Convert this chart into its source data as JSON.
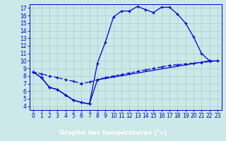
{
  "title": "Graphe des températures (°c)",
  "bg_color": "#cce8e8",
  "line_color": "#0000cc",
  "grid_color": "#aacccc",
  "xlabel_bg": "#0000aa",
  "xlabel_fg": "#ffffff",
  "xlim": [
    -0.5,
    23.5
  ],
  "ylim": [
    3.5,
    17.5
  ],
  "xticks": [
    0,
    1,
    2,
    3,
    4,
    5,
    6,
    7,
    8,
    9,
    10,
    11,
    12,
    13,
    14,
    15,
    16,
    17,
    18,
    19,
    20,
    21,
    22,
    23
  ],
  "yticks": [
    4,
    5,
    6,
    7,
    8,
    9,
    10,
    11,
    12,
    13,
    14,
    15,
    16,
    17
  ],
  "curve1_x": [
    0,
    1,
    2,
    3,
    4,
    5,
    6,
    7,
    8,
    9,
    10,
    11,
    12,
    13,
    14,
    15,
    16,
    17,
    18,
    19,
    20,
    21,
    22
  ],
  "curve1_y": [
    8.5,
    7.8,
    6.5,
    6.2,
    5.5,
    4.8,
    4.5,
    4.3,
    9.7,
    12.5,
    15.8,
    16.6,
    16.6,
    17.2,
    16.8,
    16.4,
    17.1,
    17.1,
    16.2,
    15.0,
    13.2,
    11.0,
    10.0
  ],
  "curve2_x": [
    0,
    1,
    2,
    3,
    4,
    5,
    6,
    7,
    8,
    22,
    23
  ],
  "curve2_y": [
    8.5,
    7.8,
    6.5,
    6.2,
    5.5,
    4.8,
    4.5,
    4.3,
    7.5,
    10.0,
    10.0
  ],
  "curve3_x": [
    0,
    1,
    2,
    3,
    4,
    5,
    6,
    7,
    8,
    9,
    10,
    11,
    12,
    13,
    14,
    15,
    16,
    17,
    18,
    19,
    20,
    21,
    22,
    23
  ],
  "curve3_y": [
    8.5,
    8.3,
    8.0,
    7.8,
    7.5,
    7.3,
    7.0,
    7.2,
    7.5,
    7.8,
    8.0,
    8.2,
    8.4,
    8.6,
    8.8,
    9.0,
    9.2,
    9.4,
    9.5,
    9.6,
    9.7,
    9.8,
    9.9,
    10.0
  ],
  "tick_fontsize": 5.5,
  "xlabel_fontsize": 6.5
}
